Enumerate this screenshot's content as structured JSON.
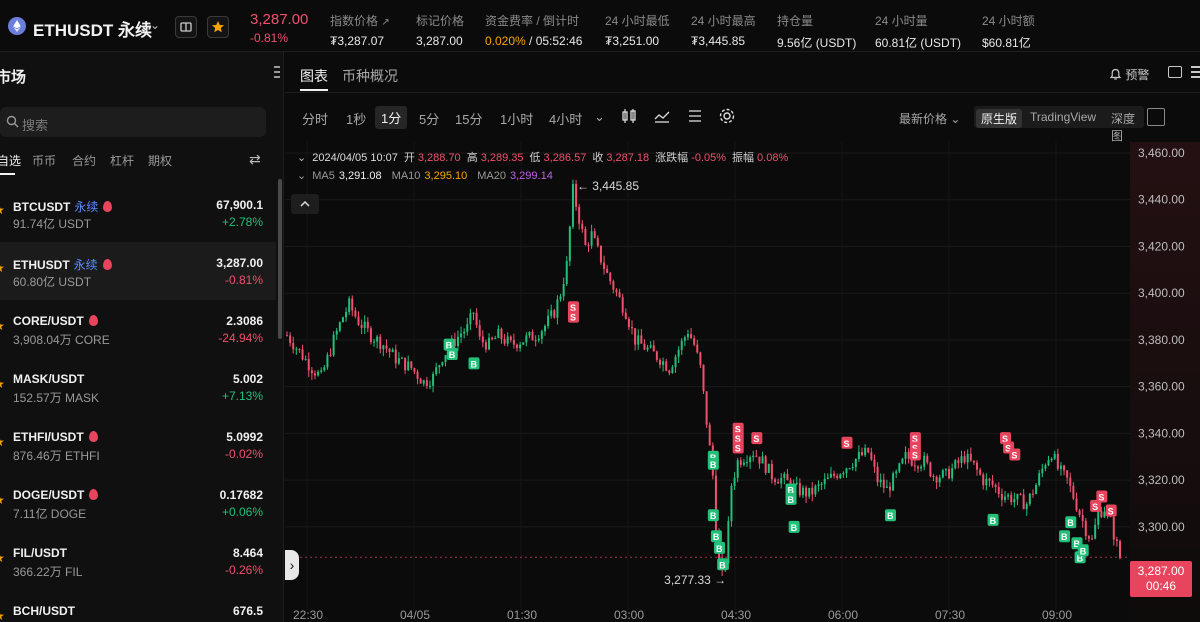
{
  "header": {
    "symbol": "ETHUSDT 永续",
    "last_price": "3,287.00",
    "change_pct": "-0.81%",
    "stats": [
      {
        "label": "指数价格",
        "value": "₮3,287.07",
        "ext": "↗"
      },
      {
        "label": "标记价格",
        "value": "3,287.00"
      },
      {
        "label": "资金费率 / 倒计时",
        "rate": "0.020%",
        "countdown": " / 05:52:46"
      },
      {
        "label": "24 小时最低",
        "value": "₮3,251.00"
      },
      {
        "label": "24 小时最高",
        "value": "₮3,445.85"
      },
      {
        "label": "持仓量",
        "value": "9.56亿 (USDT)"
      },
      {
        "label": "24 小时量",
        "value": "60.81亿 (USDT)"
      },
      {
        "label": "24 小时额",
        "value": "$60.81亿"
      }
    ]
  },
  "sidebar": {
    "title": "市场",
    "search_placeholder": "搜索",
    "tabs": [
      "自选",
      "币币",
      "合约",
      "杠杆",
      "期权"
    ],
    "perp_label": "永续",
    "items": [
      {
        "symbol": "BTCUSDT",
        "perp": true,
        "flame": true,
        "volume": "91.74亿 USDT",
        "price": "67,900.1",
        "change": "+2.78%",
        "dir": "up"
      },
      {
        "symbol": "ETHUSDT",
        "perp": true,
        "flame": true,
        "volume": "60.80亿 USDT",
        "price": "3,287.00",
        "change": "-0.81%",
        "dir": "dn",
        "active": true
      },
      {
        "symbol": "CORE/USDT",
        "perp": false,
        "flame": true,
        "volume": "3,908.04万 CORE",
        "price": "2.3086",
        "change": "-24.94%",
        "dir": "dn"
      },
      {
        "symbol": "MASK/USDT",
        "perp": false,
        "flame": false,
        "volume": "152.57万 MASK",
        "price": "5.002",
        "change": "+7.13%",
        "dir": "up"
      },
      {
        "symbol": "ETHFI/USDT",
        "perp": false,
        "flame": true,
        "volume": "876.46万 ETHFI",
        "price": "5.0992",
        "change": "-0.02%",
        "dir": "dn"
      },
      {
        "symbol": "DOGE/USDT",
        "perp": false,
        "flame": true,
        "volume": "7.11亿 DOGE",
        "price": "0.17682",
        "change": "+0.06%",
        "dir": "up"
      },
      {
        "symbol": "FIL/USDT",
        "perp": false,
        "flame": false,
        "volume": "366.22万 FIL",
        "price": "8.464",
        "change": "-0.26%",
        "dir": "dn"
      },
      {
        "symbol": "BCH/USDT",
        "perp": false,
        "flame": false,
        "volume": "",
        "price": "676.5",
        "change": "",
        "dir": "up"
      }
    ]
  },
  "chart_tabs": [
    "图表",
    "币种概况"
  ],
  "alert_label": "预警",
  "timeframes": [
    "分时",
    "1秒",
    "1分",
    "5分",
    "15分",
    "1小时",
    "4小时"
  ],
  "active_timeframe": "1分",
  "price_type": "最新价格",
  "views": [
    "原生版",
    "TradingView",
    "深度图"
  ],
  "active_view": "原生版",
  "ohlc": {
    "date": "2024/04/05 10:07",
    "open_label": "开",
    "open": "3,288.70",
    "high_label": "高",
    "high": "3,289.35",
    "low_label": "低",
    "low": "3,286.57",
    "close_label": "收",
    "close": "3,287.18",
    "chg_label": "涨跌幅",
    "chg": "-0.05%",
    "amp_label": "振幅",
    "amp": "0.08%"
  },
  "ma": {
    "ma5_label": "MA5",
    "ma5": "3,291.08",
    "ma10_label": "MA10",
    "ma10": "3,295.10",
    "ma20_label": "MA20",
    "ma20": "3,299.14"
  },
  "chart_data": {
    "type": "candlestick",
    "y_ticks": [
      "3,460.00",
      "3,440.00",
      "3,420.00",
      "3,400.00",
      "3,380.00",
      "3,360.00",
      "3,340.00",
      "3,320.00",
      "3,300.00"
    ],
    "ylim": [
      3267,
      3463
    ],
    "x_ticks": [
      "22:30",
      "04/05",
      "01:30",
      "03:00",
      "04:30",
      "06:00",
      "07:30",
      "09:00"
    ],
    "high_label": "3,445.85",
    "high_value": 3445.85,
    "low_label": "3,277.33",
    "low_value": 3277.33,
    "last_price": "3,287.00",
    "last_value": 3287.0,
    "countdown": "00:46",
    "path": [
      [
        0,
        3382
      ],
      [
        4,
        3375
      ],
      [
        8,
        3368
      ],
      [
        11,
        3364
      ],
      [
        15,
        3380
      ],
      [
        18,
        3390
      ],
      [
        20,
        3395
      ],
      [
        23,
        3388
      ],
      [
        27,
        3382
      ],
      [
        31,
        3378
      ],
      [
        35,
        3372
      ],
      [
        40,
        3368
      ],
      [
        44,
        3362
      ],
      [
        47,
        3364
      ],
      [
        50,
        3373
      ],
      [
        53,
        3378
      ],
      [
        56,
        3383
      ],
      [
        58,
        3385
      ],
      [
        60,
        3392
      ],
      [
        62,
        3380
      ],
      [
        65,
        3378
      ],
      [
        68,
        3382
      ],
      [
        72,
        3378
      ],
      [
        76,
        3380
      ],
      [
        80,
        3382
      ],
      [
        83,
        3386
      ],
      [
        86,
        3392
      ],
      [
        88,
        3400
      ],
      [
        90,
        3412
      ],
      [
        91,
        3428
      ],
      [
        92,
        3444
      ],
      [
        94,
        3432
      ],
      [
        96,
        3420
      ],
      [
        98,
        3425
      ],
      [
        100,
        3418
      ],
      [
        103,
        3408
      ],
      [
        106,
        3400
      ],
      [
        109,
        3392
      ],
      [
        112,
        3380
      ],
      [
        116,
        3376
      ],
      [
        120,
        3372
      ],
      [
        123,
        3368
      ],
      [
        126,
        3376
      ],
      [
        129,
        3384
      ],
      [
        131,
        3378
      ],
      [
        133,
        3368
      ],
      [
        135,
        3345
      ],
      [
        137,
        3322
      ],
      [
        138,
        3300
      ],
      [
        139,
        3285
      ],
      [
        140,
        3279
      ],
      [
        141,
        3286
      ],
      [
        142,
        3300
      ],
      [
        143,
        3318
      ],
      [
        145,
        3328
      ],
      [
        147,
        3330
      ],
      [
        150,
        3332
      ],
      [
        153,
        3328
      ],
      [
        156,
        3322
      ],
      [
        160,
        3320
      ],
      [
        164,
        3316
      ],
      [
        168,
        3314
      ],
      [
        172,
        3318
      ],
      [
        176,
        3322
      ],
      [
        180,
        3326
      ],
      [
        184,
        3330
      ],
      [
        187,
        3332
      ],
      [
        190,
        3320
      ],
      [
        193,
        3316
      ],
      [
        196,
        3322
      ],
      [
        199,
        3330
      ],
      [
        202,
        3328
      ],
      [
        205,
        3328
      ],
      [
        208,
        3322
      ],
      [
        212,
        3322
      ],
      [
        215,
        3326
      ],
      [
        218,
        3330
      ],
      [
        221,
        3326
      ],
      [
        224,
        3320
      ],
      [
        227,
        3318
      ],
      [
        230,
        3314
      ],
      [
        234,
        3312
      ],
      [
        238,
        3310
      ],
      [
        241,
        3318
      ],
      [
        244,
        3328
      ],
      [
        246,
        3332
      ],
      [
        248,
        3325
      ],
      [
        251,
        3320
      ],
      [
        253,
        3313
      ],
      [
        255,
        3306
      ],
      [
        257,
        3299
      ],
      [
        259,
        3294
      ],
      [
        261,
        3306
      ],
      [
        263,
        3308
      ],
      [
        265,
        3302
      ],
      [
        267,
        3292
      ],
      [
        268,
        3287
      ]
    ],
    "buy_markers": [
      [
        52,
        3378
      ],
      [
        53,
        3374
      ],
      [
        60,
        3370
      ],
      [
        137,
        3330
      ],
      [
        137,
        3327
      ],
      [
        137,
        3305
      ],
      [
        138,
        3296
      ],
      [
        139,
        3291
      ],
      [
        140,
        3284
      ],
      [
        162,
        3316
      ],
      [
        162,
        3312
      ],
      [
        163,
        3300
      ],
      [
        194,
        3305
      ],
      [
        227,
        3303
      ],
      [
        250,
        3296
      ],
      [
        252,
        3302
      ],
      [
        254,
        3293
      ],
      [
        255,
        3287
      ],
      [
        256,
        3290
      ]
    ],
    "sell_markers": [
      [
        92,
        3394
      ],
      [
        92,
        3390
      ],
      [
        145,
        3342
      ],
      [
        145,
        3338
      ],
      [
        145,
        3334
      ],
      [
        151,
        3338
      ],
      [
        180,
        3336
      ],
      [
        202,
        3338
      ],
      [
        202,
        3334
      ],
      [
        202,
        3331
      ],
      [
        231,
        3338
      ],
      [
        232,
        3334
      ],
      [
        234,
        3331
      ],
      [
        262,
        3313
      ],
      [
        260,
        3309
      ],
      [
        265,
        3307
      ]
    ]
  },
  "colors": {
    "up": "#23c07a",
    "down": "#f0506e",
    "accent": "#f7a600",
    "ma10": "#f7a600",
    "ma20": "#c060e8"
  }
}
